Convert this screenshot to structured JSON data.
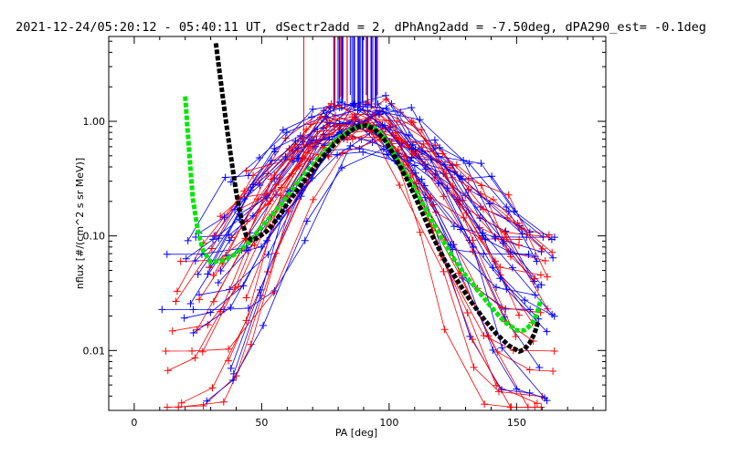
{
  "chart_data": {
    "type": "line",
    "title": "2021-12-24/05:20:12 - 05:40:11 UT, dSectr2add = 2, dPhAng2add = -7.50deg, dPA290_est=  -0.1deg",
    "xlabel": "PA [deg]",
    "ylabel": "nflux [#/(cm^2 s sr MeV)]",
    "xlim": [
      -10,
      185
    ],
    "ylim": [
      0.003,
      5.5
    ],
    "yscale": "log",
    "x_ticks": [
      0,
      50,
      100,
      150
    ],
    "x_tick_labels": [
      "0",
      "50",
      "100",
      "150"
    ],
    "y_ticks": [
      0.01,
      0.1,
      1.0
    ],
    "y_tick_labels": [
      "0.01",
      "0.10",
      "1.00"
    ],
    "grid": false,
    "series": [
      {
        "color": "#00e600",
        "style": "thick-dotted-fit",
        "x": [
          20,
          21,
          22,
          23,
          25,
          27,
          30,
          35,
          40,
          45,
          50,
          55,
          60,
          65,
          70,
          75,
          80,
          85,
          88,
          91,
          94,
          97,
          100,
          105,
          110,
          115,
          120,
          125,
          130,
          135,
          140,
          145,
          150,
          153,
          156,
          158,
          159.5
        ],
        "y": [
          1.65,
          0.8,
          0.4,
          0.21,
          0.11,
          0.075,
          0.059,
          0.061,
          0.07,
          0.088,
          0.12,
          0.16,
          0.22,
          0.31,
          0.42,
          0.56,
          0.72,
          0.85,
          0.9,
          0.92,
          0.88,
          0.78,
          0.62,
          0.4,
          0.26,
          0.16,
          0.1,
          0.065,
          0.045,
          0.033,
          0.024,
          0.018,
          0.015,
          0.015,
          0.017,
          0.021,
          0.028
        ]
      },
      {
        "color": "#000000",
        "style": "thick-dotted-fit",
        "x": [
          32,
          34,
          36,
          38,
          40,
          42,
          44,
          46,
          48,
          52,
          56,
          60,
          65,
          70,
          75,
          80,
          85,
          88,
          91,
          94,
          98,
          102,
          107,
          112,
          117,
          122,
          127,
          132,
          137,
          142,
          147,
          151,
          153,
          155,
          157,
          158.5
        ],
        "y": [
          4.8,
          2.2,
          1.0,
          0.48,
          0.24,
          0.14,
          0.1,
          0.092,
          0.095,
          0.11,
          0.14,
          0.19,
          0.27,
          0.38,
          0.52,
          0.68,
          0.83,
          0.9,
          0.92,
          0.86,
          0.7,
          0.5,
          0.31,
          0.18,
          0.1,
          0.06,
          0.04,
          0.027,
          0.019,
          0.014,
          0.011,
          0.0098,
          0.0102,
          0.0115,
          0.014,
          0.018
        ]
      }
    ]
  }
}
